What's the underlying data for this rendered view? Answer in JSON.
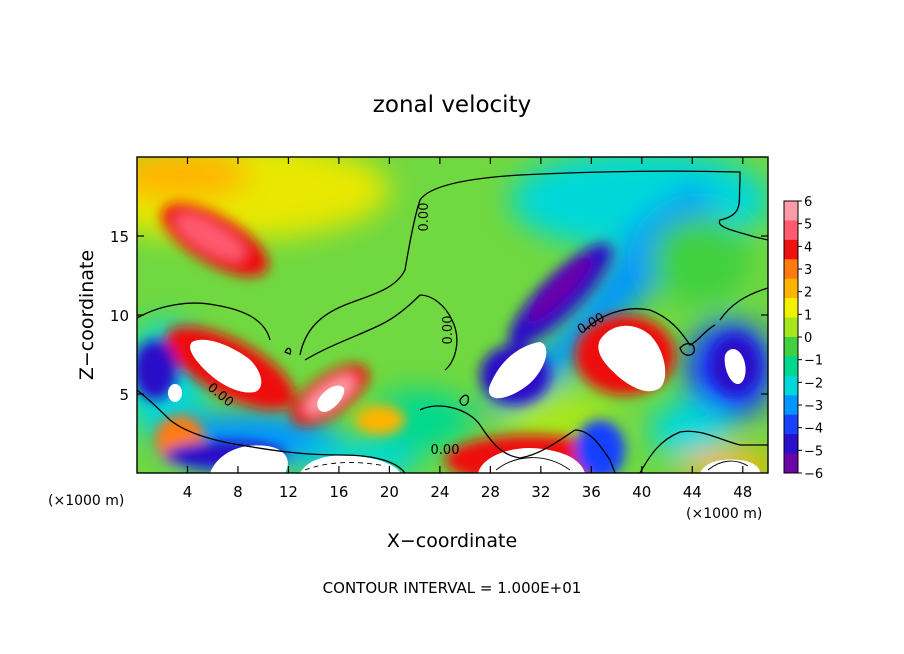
{
  "chart_data": {
    "type": "heatmap",
    "title": "zonal velocity",
    "xlabel": "X−coordinate",
    "ylabel": "Z−coordinate",
    "x_unit_left": "(×1000 m)",
    "x_unit_right": "(×1000 m)",
    "footer": "CONTOUR INTERVAL = 1.000E+01",
    "xlim": [
      0,
      50
    ],
    "ylim": [
      0,
      20
    ],
    "xticks": [
      4,
      8,
      12,
      16,
      20,
      24,
      28,
      32,
      36,
      40,
      44,
      48
    ],
    "yticks": [
      5,
      10,
      15
    ],
    "colorbar": {
      "ticks": [
        6,
        5,
        4,
        3,
        2,
        1,
        0,
        -1,
        -2,
        -3,
        -4,
        -5,
        -6
      ],
      "tick_labels": [
        "6",
        "5",
        "4",
        "3",
        "2",
        "1",
        "0",
        "−1",
        "−2",
        "−3",
        "−4",
        "−5",
        "−6"
      ],
      "colors": [
        "#ff9aa8",
        "#ff5a70",
        "#ee1111",
        "#ff7a10",
        "#ffb400",
        "#f2f200",
        "#a6e61c",
        "#40d040",
        "#00d890",
        "#00d8d8",
        "#0096ff",
        "#1840ff",
        "#2a10c8",
        "#6a06a8"
      ]
    },
    "contour_labels": [
      "0.00",
      "0.00",
      "0.00",
      "0.00",
      "0.00"
    ],
    "features": [
      {
        "x": 7,
        "z": 15,
        "value": 4.5
      },
      {
        "x": 9,
        "z": 7.2,
        "value": 7
      },
      {
        "x": 15.5,
        "z": 5,
        "value": 5
      },
      {
        "x": 35,
        "z": 12,
        "value": -5.5
      },
      {
        "x": 30,
        "z": 6,
        "value": 7
      },
      {
        "x": 39,
        "z": 7,
        "value": 7
      },
      {
        "x": 47,
        "z": 6.5,
        "value": -5
      },
      {
        "x": 10,
        "z": 2,
        "value": -5.5
      },
      {
        "x": 30,
        "z": 1.5,
        "value": 5
      }
    ]
  }
}
